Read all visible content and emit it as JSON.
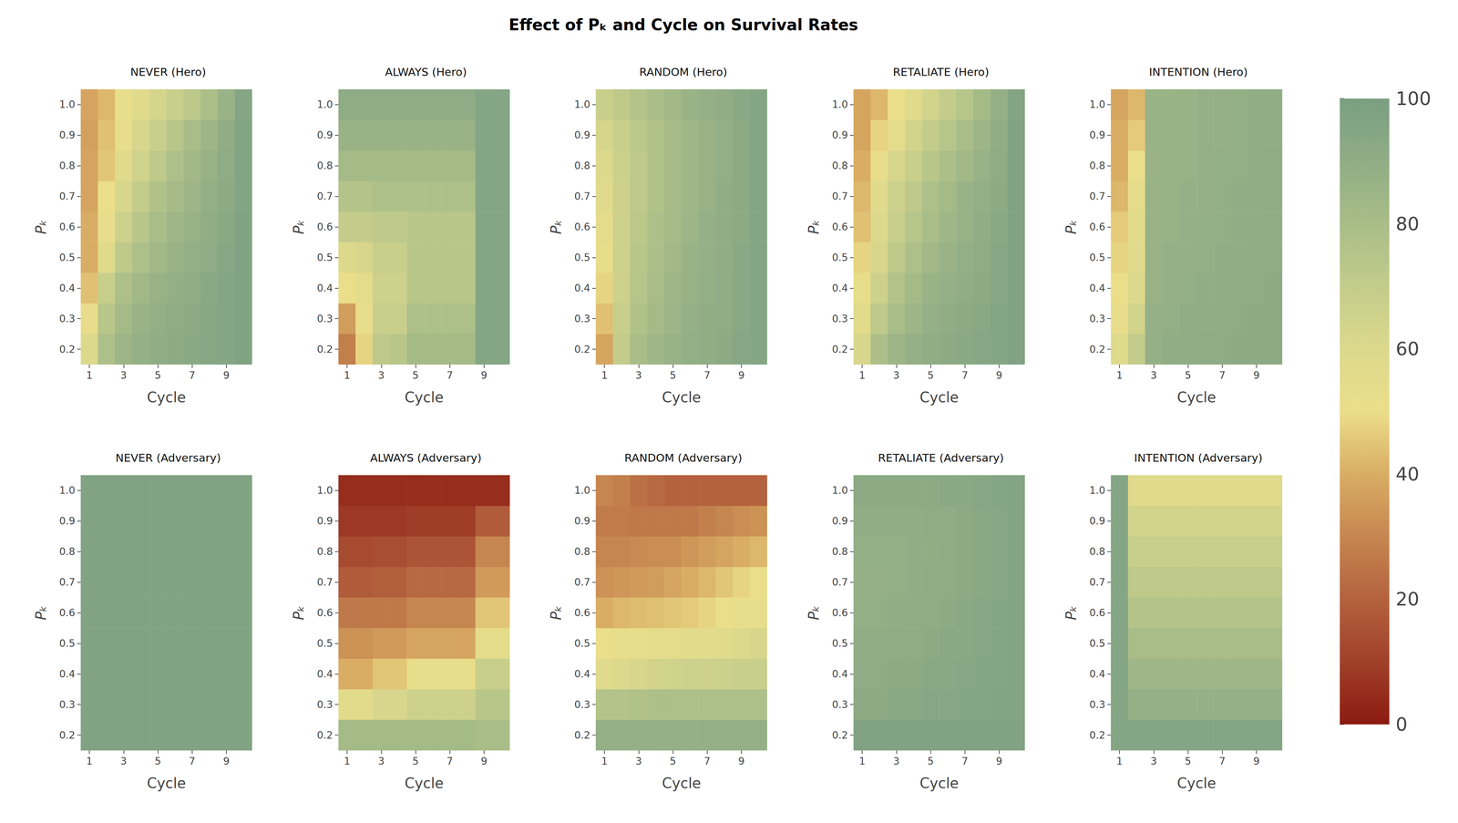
{
  "title": "Effect of Pₖ and Cycle on Survival Rates",
  "colorbar": {
    "range": [
      0,
      100
    ],
    "ticks": [
      0,
      20,
      40,
      60,
      80,
      100
    ]
  },
  "chart_data": [
    {
      "type": "heatmap",
      "title": "NEVER (Hero)",
      "x_label": "Cycle",
      "y_label": "Pₖ",
      "x": [
        "1",
        null,
        "3",
        null,
        "5",
        null,
        "7",
        null,
        "9",
        null
      ],
      "y": [
        "0.2",
        "0.3",
        "0.4",
        "0.5",
        "0.6",
        "0.7",
        "0.8",
        "0.9",
        "1.0"
      ],
      "values": [
        [
          60,
          78,
          85,
          88,
          90,
          92,
          93,
          94,
          95,
          97
        ],
        [
          52,
          74,
          82,
          86,
          89,
          91,
          92,
          94,
          95,
          97
        ],
        [
          44,
          68,
          78,
          83,
          87,
          89,
          91,
          93,
          95,
          97
        ],
        [
          40,
          58,
          72,
          78,
          83,
          86,
          89,
          91,
          94,
          97
        ],
        [
          40,
          52,
          66,
          74,
          80,
          84,
          87,
          90,
          93,
          97
        ],
        [
          38,
          50,
          62,
          70,
          77,
          81,
          85,
          89,
          92,
          96
        ],
        [
          38,
          45,
          58,
          65,
          72,
          78,
          83,
          87,
          91,
          96
        ],
        [
          37,
          44,
          52,
          62,
          68,
          74,
          80,
          85,
          90,
          96
        ],
        [
          38,
          42,
          52,
          58,
          63,
          68,
          73,
          79,
          86,
          95
        ]
      ]
    },
    {
      "type": "heatmap",
      "title": "ALWAYS (Hero)",
      "x_label": "Cycle",
      "y_label": "Pₖ",
      "x": [
        "1",
        null,
        "3",
        null,
        "5",
        null,
        "7",
        null,
        "9",
        null
      ],
      "y": [
        "0.2",
        "0.3",
        "0.4",
        "0.5",
        "0.6",
        "0.7",
        "0.8",
        "0.9",
        "1.0"
      ],
      "values": [
        [
          28,
          48,
          72,
          74,
          82,
          82,
          82,
          82,
          95,
          95
        ],
        [
          36,
          52,
          68,
          68,
          78,
          78,
          78,
          78,
          95,
          95
        ],
        [
          50,
          55,
          66,
          66,
          74,
          74,
          74,
          74,
          95,
          95
        ],
        [
          60,
          62,
          68,
          68,
          74,
          74,
          74,
          74,
          95,
          95
        ],
        [
          70,
          70,
          72,
          72,
          74,
          74,
          74,
          74,
          95,
          95
        ],
        [
          76,
          76,
          78,
          78,
          78,
          78,
          78,
          78,
          95,
          95
        ],
        [
          82,
          82,
          82,
          82,
          82,
          82,
          82,
          82,
          95,
          95
        ],
        [
          86,
          86,
          86,
          86,
          86,
          86,
          86,
          86,
          95,
          95
        ],
        [
          91,
          91,
          91,
          91,
          91,
          91,
          91,
          91,
          95,
          95
        ]
      ]
    },
    {
      "type": "heatmap",
      "title": "RANDOM (Hero)",
      "x_label": "Cycle",
      "y_label": "Pₖ",
      "x": [
        "1",
        null,
        "3",
        null,
        "5",
        null,
        "7",
        null,
        "9",
        null
      ],
      "y": [
        "0.2",
        "0.3",
        "0.4",
        "0.5",
        "0.6",
        "0.7",
        "0.8",
        "0.9",
        "1.0"
      ],
      "values": [
        [
          38,
          70,
          80,
          84,
          87,
          89,
          90,
          92,
          94,
          95
        ],
        [
          44,
          68,
          77,
          82,
          85,
          88,
          90,
          91,
          93,
          95
        ],
        [
          48,
          66,
          75,
          80,
          84,
          87,
          89,
          91,
          93,
          95
        ],
        [
          52,
          66,
          74,
          79,
          83,
          86,
          88,
          90,
          93,
          95
        ],
        [
          55,
          66,
          73,
          78,
          82,
          85,
          88,
          90,
          92,
          95
        ],
        [
          58,
          66,
          72,
          77,
          81,
          84,
          87,
          90,
          92,
          95
        ],
        [
          60,
          67,
          72,
          77,
          81,
          84,
          87,
          89,
          92,
          95
        ],
        [
          63,
          68,
          73,
          77,
          81,
          84,
          87,
          89,
          92,
          95
        ],
        [
          68,
          72,
          76,
          80,
          83,
          86,
          88,
          90,
          93,
          95
        ]
      ]
    },
    {
      "type": "heatmap",
      "title": "RETALIATE (Hero)",
      "x_label": "Cycle",
      "y_label": "Pₖ",
      "x": [
        "1",
        null,
        "3",
        null,
        "5",
        null,
        "7",
        null,
        "9",
        null
      ],
      "y": [
        "0.2",
        "0.3",
        "0.4",
        "0.5",
        "0.6",
        "0.7",
        "0.8",
        "0.9",
        "1.0"
      ],
      "values": [
        [
          62,
          78,
          85,
          88,
          90,
          92,
          93,
          94,
          95,
          97
        ],
        [
          56,
          72,
          80,
          85,
          88,
          90,
          92,
          93,
          95,
          97
        ],
        [
          52,
          66,
          76,
          82,
          86,
          88,
          90,
          92,
          94,
          97
        ],
        [
          48,
          62,
          72,
          78,
          83,
          86,
          89,
          91,
          94,
          97
        ],
        [
          44,
          60,
          68,
          75,
          80,
          84,
          87,
          90,
          93,
          97
        ],
        [
          42,
          58,
          66,
          72,
          78,
          82,
          86,
          89,
          92,
          97
        ],
        [
          40,
          52,
          62,
          68,
          74,
          79,
          83,
          87,
          91,
          97
        ],
        [
          38,
          48,
          55,
          64,
          70,
          75,
          80,
          85,
          90,
          97
        ],
        [
          38,
          42,
          50,
          58,
          64,
          70,
          75,
          82,
          88,
          96
        ]
      ]
    },
    {
      "type": "heatmap",
      "title": "INTENTION (Hero)",
      "x_label": "Cycle",
      "y_label": "Pₖ",
      "x": [
        "1",
        null,
        "3",
        null,
        "5",
        null,
        "7",
        null,
        "9",
        null
      ],
      "y": [
        "0.2",
        "0.3",
        "0.4",
        "0.5",
        "0.6",
        "0.7",
        "0.8",
        "0.9",
        "1.0"
      ],
      "values": [
        [
          58,
          70,
          88,
          90,
          90,
          91,
          91,
          92,
          92,
          92
        ],
        [
          52,
          64,
          88,
          89,
          90,
          90,
          91,
          91,
          92,
          92
        ],
        [
          50,
          60,
          87,
          88,
          89,
          90,
          90,
          91,
          91,
          92
        ],
        [
          48,
          58,
          87,
          88,
          88,
          89,
          90,
          90,
          91,
          91
        ],
        [
          46,
          56,
          86,
          87,
          88,
          89,
          89,
          90,
          90,
          91
        ],
        [
          42,
          54,
          86,
          87,
          88,
          88,
          89,
          90,
          90,
          91
        ],
        [
          40,
          50,
          86,
          87,
          87,
          88,
          89,
          89,
          90,
          91
        ],
        [
          40,
          46,
          86,
          86,
          87,
          88,
          88,
          89,
          90,
          90
        ],
        [
          38,
          42,
          86,
          86,
          87,
          88,
          88,
          89,
          90,
          90
        ]
      ]
    },
    {
      "type": "heatmap",
      "title": "NEVER (Adversary)",
      "x_label": "Cycle",
      "y_label": "Pₖ",
      "x": [
        "1",
        null,
        "3",
        null,
        "5",
        null,
        "7",
        null,
        "9",
        null
      ],
      "y": [
        "0.2",
        "0.3",
        "0.4",
        "0.5",
        "0.6",
        "0.7",
        "0.8",
        "0.9",
        "1.0"
      ],
      "values": [
        [
          97,
          97,
          97,
          97,
          97,
          97,
          97,
          97,
          97,
          97
        ],
        [
          97,
          97,
          97,
          97,
          97,
          97,
          97,
          97,
          97,
          97
        ],
        [
          97,
          97,
          97,
          97,
          97,
          97,
          97,
          97,
          97,
          97
        ],
        [
          97,
          97,
          97,
          97,
          97,
          97,
          97,
          97,
          97,
          97
        ],
        [
          97,
          97,
          97,
          97,
          97,
          97,
          97,
          97,
          97,
          97
        ],
        [
          97,
          97,
          97,
          97,
          97,
          97,
          97,
          97,
          97,
          97
        ],
        [
          97,
          97,
          97,
          97,
          97,
          97,
          97,
          97,
          97,
          97
        ],
        [
          97,
          97,
          97,
          97,
          97,
          97,
          97,
          97,
          97,
          97
        ],
        [
          97,
          97,
          97,
          97,
          97,
          97,
          97,
          97,
          97,
          97
        ]
      ]
    },
    {
      "type": "heatmap",
      "title": "ALWAYS (Adversary)",
      "x_label": "Cycle",
      "y_label": "Pₖ",
      "x": [
        "1",
        null,
        "3",
        null,
        "5",
        null,
        "7",
        null,
        "9",
        null
      ],
      "y": [
        "0.2",
        "0.3",
        "0.4",
        "0.5",
        "0.6",
        "0.7",
        "0.8",
        "0.9",
        "1.0"
      ],
      "values": [
        [
          82,
          82,
          82,
          82,
          82,
          82,
          82,
          82,
          80,
          80
        ],
        [
          56,
          56,
          62,
          62,
          66,
          66,
          66,
          66,
          74,
          74
        ],
        [
          40,
          40,
          45,
          45,
          52,
          52,
          52,
          52,
          68,
          68
        ],
        [
          33,
          33,
          35,
          35,
          38,
          38,
          38,
          38,
          55,
          55
        ],
        [
          26,
          26,
          26,
          26,
          30,
          30,
          30,
          30,
          45,
          45
        ],
        [
          18,
          18,
          19,
          19,
          22,
          22,
          22,
          22,
          35,
          35
        ],
        [
          13,
          13,
          14,
          14,
          16,
          16,
          16,
          16,
          30,
          30
        ],
        [
          8,
          8,
          8,
          8,
          9,
          9,
          9,
          9,
          18,
          18
        ],
        [
          5,
          5,
          5,
          5,
          5,
          5,
          5,
          5,
          5,
          5
        ]
      ]
    },
    {
      "type": "heatmap",
      "title": "RANDOM (Adversary)",
      "x_label": "Cycle",
      "y_label": "Pₖ",
      "x": [
        "1",
        null,
        "3",
        null,
        "5",
        null,
        "7",
        null,
        "9",
        null
      ],
      "y": [
        "0.2",
        "0.3",
        "0.4",
        "0.5",
        "0.6",
        "0.7",
        "0.8",
        "0.9",
        "1.0"
      ],
      "values": [
        [
          88,
          88,
          88,
          88,
          88,
          88,
          88,
          88,
          88,
          88
        ],
        [
          76,
          76,
          77,
          78,
          78,
          78,
          78,
          78,
          78,
          78
        ],
        [
          58,
          60,
          62,
          64,
          65,
          66,
          66,
          67,
          68,
          68
        ],
        [
          50,
          52,
          53,
          54,
          55,
          56,
          57,
          58,
          60,
          62
        ],
        [
          40,
          42,
          43,
          44,
          45,
          46,
          48,
          50,
          52,
          53
        ],
        [
          33,
          34,
          35,
          36,
          38,
          40,
          42,
          45,
          48,
          50
        ],
        [
          30,
          30,
          31,
          32,
          32,
          34,
          36,
          38,
          40,
          42
        ],
        [
          27,
          27,
          26,
          26,
          26,
          26,
          28,
          30,
          32,
          33
        ],
        [
          30,
          28,
          24,
          22,
          20,
          20,
          20,
          20,
          20,
          20
        ]
      ]
    },
    {
      "type": "heatmap",
      "title": "RETALIATE (Adversary)",
      "x_label": "Cycle",
      "y_label": "Pₖ",
      "x": [
        "1",
        null,
        "3",
        null,
        "5",
        null,
        "7",
        null,
        "9",
        null
      ],
      "y": [
        "0.2",
        "0.3",
        "0.4",
        "0.5",
        "0.6",
        "0.7",
        "0.8",
        "0.9",
        "1.0"
      ],
      "values": [
        [
          97,
          97,
          97,
          97,
          97,
          97,
          97,
          97,
          97,
          97
        ],
        [
          92,
          92,
          93,
          93,
          94,
          94,
          95,
          95,
          96,
          96
        ],
        [
          91,
          91,
          92,
          92,
          93,
          93,
          94,
          95,
          95,
          96
        ],
        [
          90,
          90,
          91,
          91,
          92,
          93,
          93,
          94,
          95,
          96
        ],
        [
          89,
          89,
          90,
          91,
          91,
          92,
          93,
          94,
          95,
          96
        ],
        [
          88,
          88,
          89,
          90,
          91,
          91,
          92,
          93,
          94,
          96
        ],
        [
          89,
          89,
          89,
          90,
          90,
          91,
          92,
          93,
          94,
          96
        ],
        [
          90,
          90,
          90,
          90,
          91,
          91,
          92,
          93,
          94,
          96
        ],
        [
          92,
          92,
          92,
          92,
          92,
          93,
          93,
          94,
          95,
          96
        ]
      ]
    },
    {
      "type": "heatmap",
      "title": "INTENTION (Adversary)",
      "x_label": "Cycle",
      "y_label": "Pₖ",
      "x": [
        "1",
        null,
        "3",
        null,
        "5",
        null,
        "7",
        null,
        "9",
        null
      ],
      "y": [
        "0.2",
        "0.3",
        "0.4",
        "0.5",
        "0.6",
        "0.7",
        "0.8",
        "0.9",
        "1.0"
      ],
      "values": [
        [
          95,
          95,
          95,
          95,
          95,
          95,
          95,
          95,
          95,
          95
        ],
        [
          95,
          88,
          88,
          88,
          88,
          88,
          88,
          88,
          88,
          88
        ],
        [
          95,
          84,
          84,
          84,
          84,
          84,
          84,
          84,
          84,
          84
        ],
        [
          95,
          80,
          80,
          80,
          80,
          80,
          80,
          80,
          80,
          80
        ],
        [
          95,
          76,
          76,
          76,
          76,
          76,
          76,
          76,
          76,
          76
        ],
        [
          95,
          72,
          72,
          72,
          72,
          72,
          72,
          72,
          72,
          72
        ],
        [
          95,
          68,
          68,
          68,
          68,
          68,
          68,
          68,
          68,
          68
        ],
        [
          95,
          64,
          64,
          64,
          64,
          64,
          64,
          64,
          64,
          64
        ],
        [
          95,
          58,
          58,
          58,
          58,
          58,
          58,
          58,
          58,
          58
        ]
      ]
    }
  ]
}
